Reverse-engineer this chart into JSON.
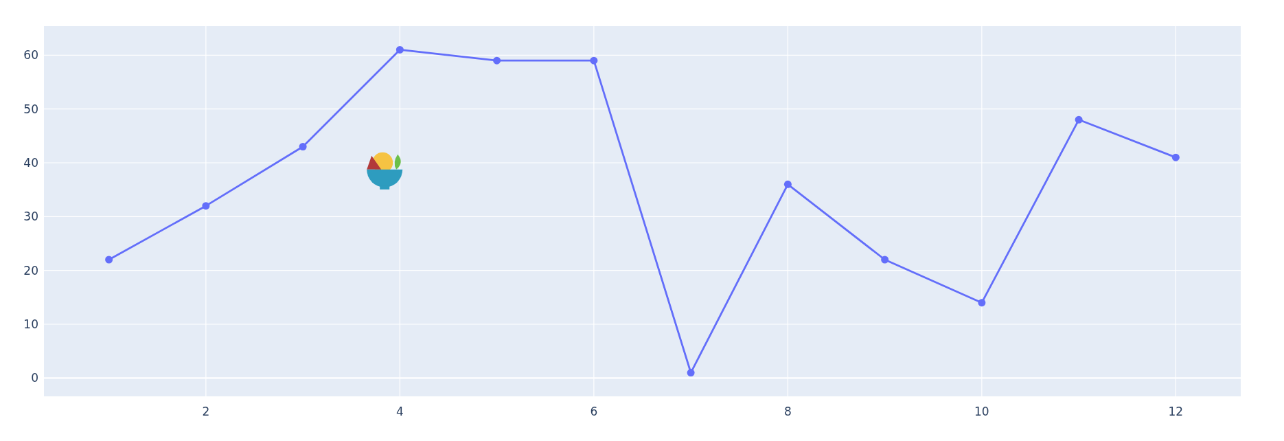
{
  "chart_data": {
    "type": "line",
    "x": [
      1,
      2,
      3,
      4,
      5,
      6,
      7,
      8,
      9,
      10,
      11,
      12
    ],
    "series": [
      {
        "color": "#636efa",
        "values": [
          22,
          32,
          43,
          61,
          59,
          59,
          1,
          36,
          22,
          14,
          48,
          41
        ]
      }
    ],
    "xlim": [
      0.33,
      12.67
    ],
    "ylim": [
      -3.4,
      65.4
    ],
    "xticks": [
      2,
      4,
      6,
      8,
      10,
      12
    ],
    "yticks": [
      0,
      10,
      20,
      30,
      40,
      50,
      60
    ],
    "grid": true,
    "marker": "circle",
    "line_style": "solid"
  }
}
